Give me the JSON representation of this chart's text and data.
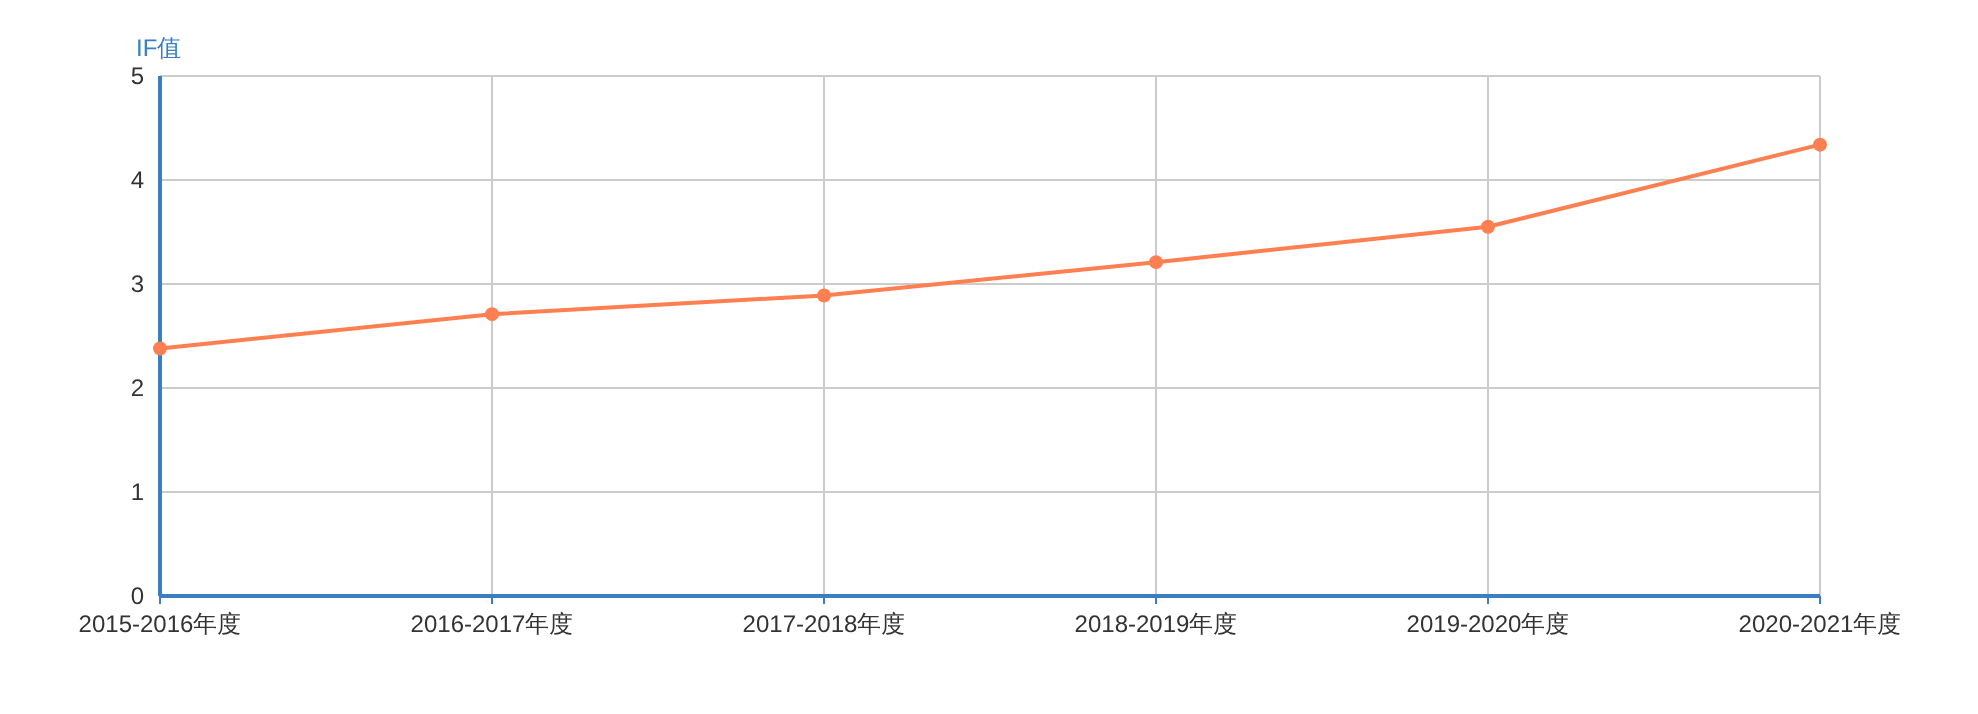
{
  "chart_data": {
    "type": "line",
    "ylabel": "IF值",
    "categories": [
      "2015-2016年度",
      "2016-2017年度",
      "2017-2018年度",
      "2018-2019年度",
      "2019-2020年度",
      "2020-2021年度"
    ],
    "series": [
      {
        "color": "#ff7f50",
        "values": [
          2.38,
          2.71,
          2.89,
          3.21,
          3.55,
          4.34
        ]
      }
    ],
    "ylim": [
      0,
      5
    ],
    "yticks": [
      0,
      1,
      2,
      3,
      4,
      5
    ],
    "grid": true,
    "marker": "circle",
    "line_style": "solid"
  }
}
